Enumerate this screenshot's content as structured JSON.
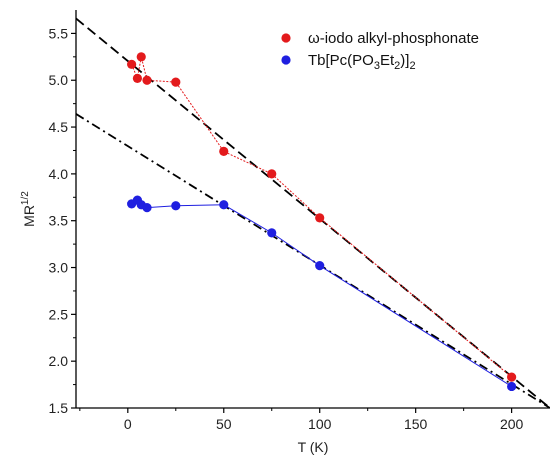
{
  "chart_data": {
    "type": "scatter",
    "xlabel": "T (K)",
    "ylabel": "MR",
    "ylabel_sup": "1/2",
    "xlim": [
      -27,
      220
    ],
    "ylim": [
      1.5,
      5.75
    ],
    "xticks": [
      0,
      50,
      100,
      150,
      200
    ],
    "yticks": [
      1.5,
      2.0,
      2.5,
      3.0,
      3.5,
      4.0,
      4.5,
      5.0,
      5.5
    ],
    "xtick_labels": [
      "0",
      "50",
      "100",
      "150",
      "200"
    ],
    "ytick_labels": [
      "1.5",
      "2.0",
      "2.5",
      "3.0",
      "3.5",
      "4.0",
      "4.5",
      "5.0",
      "5.5"
    ],
    "grid": false,
    "legend_position": "top-right",
    "series": [
      {
        "name_parts": [
          "ω-iodo alkyl-phosphonate"
        ],
        "color": "#e31a1c",
        "line_color": "#e31a1c",
        "line_style": "dotted",
        "points": [
          [
            2,
            5.17
          ],
          [
            5,
            5.02
          ],
          [
            7,
            5.25
          ],
          [
            10,
            5.0
          ],
          [
            25,
            4.98
          ],
          [
            50,
            4.24
          ],
          [
            75,
            4.0
          ],
          [
            100,
            3.53
          ],
          [
            200,
            1.83
          ]
        ]
      },
      {
        "name_parts": [
          "Tb[Pc(PO",
          "3",
          "Et",
          "2",
          ")]",
          "2"
        ],
        "color": "#1f1fe0",
        "line_color": "#1f1fe0",
        "line_style": "solid",
        "points": [
          [
            2,
            3.68
          ],
          [
            5,
            3.72
          ],
          [
            7,
            3.67
          ],
          [
            10,
            3.64
          ],
          [
            25,
            3.66
          ],
          [
            50,
            3.67
          ],
          [
            75,
            3.37
          ],
          [
            100,
            3.02
          ],
          [
            200,
            1.73
          ]
        ]
      }
    ],
    "fit_lines": [
      {
        "style": "dashed",
        "color": "#000000",
        "from": [
          -27,
          5.66
        ],
        "to": [
          220,
          1.5
        ]
      },
      {
        "style": "dashdot",
        "color": "#000000",
        "from": [
          -27,
          4.64
        ],
        "to": [
          220,
          1.5
        ]
      }
    ]
  }
}
